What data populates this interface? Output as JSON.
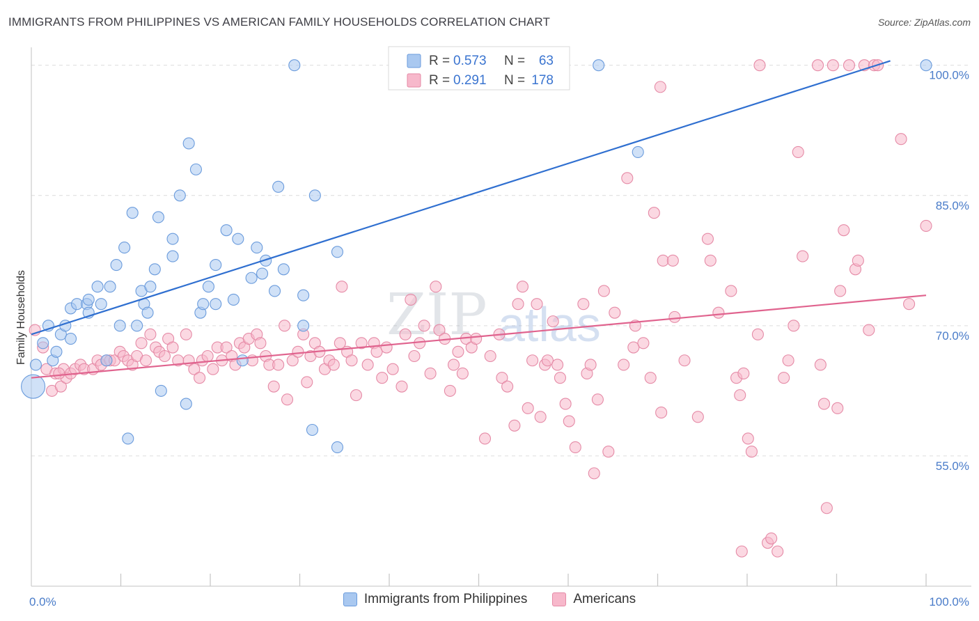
{
  "header": {
    "title": "IMMIGRANTS FROM PHILIPPINES VS AMERICAN FAMILY HOUSEHOLDS CORRELATION CHART",
    "source": "Source: ZipAtlas.com"
  },
  "watermark": {
    "zip": "ZIP",
    "atlas": "atlas"
  },
  "chart_data": {
    "type": "scatter",
    "title": "IMMIGRANTS FROM PHILIPPINES VS AMERICAN FAMILY HOUSEHOLDS CORRELATION CHART",
    "xlabel": "",
    "ylabel": "Family Households",
    "xlim": [
      0,
      100
    ],
    "ylim": [
      40,
      101.5
    ],
    "x_tick_labels": [
      "0.0%",
      "100.0%"
    ],
    "y_ticks": [
      55,
      70,
      85,
      100
    ],
    "y_tick_labels": [
      "55.0%",
      "70.0%",
      "85.0%",
      "100.0%"
    ],
    "grid": true,
    "legend_position": "top-center",
    "stats": [
      {
        "series": "Immigrants from Philippines",
        "r_label": "R =",
        "r": "0.573",
        "n_label": "N =",
        "n": "63"
      },
      {
        "series": "Americans",
        "r_label": "R =",
        "r": "0.291",
        "n_label": "N =",
        "n": "178"
      }
    ],
    "series": [
      {
        "name": "Immigrants from Philippines",
        "color": "#a9c8f0",
        "stroke": "#6a9bdc",
        "trend_color": "#2f6fd0",
        "trend": [
          [
            0,
            69.0
          ],
          [
            96,
            100.5
          ]
        ],
        "points": [
          [
            0.5,
            65.5
          ],
          [
            1.3,
            68
          ],
          [
            1.9,
            70
          ],
          [
            2.4,
            66
          ],
          [
            2.8,
            67
          ],
          [
            3.3,
            69
          ],
          [
            3.8,
            70
          ],
          [
            4.4,
            68.5
          ],
          [
            4.4,
            72
          ],
          [
            5.1,
            72.5
          ],
          [
            6.2,
            72.5
          ],
          [
            6.4,
            71.5
          ],
          [
            6.4,
            73
          ],
          [
            7.4,
            74.5
          ],
          [
            7.8,
            72.5
          ],
          [
            8.4,
            66
          ],
          [
            8.8,
            74.5
          ],
          [
            9.5,
            77
          ],
          [
            9.9,
            70
          ],
          [
            10.4,
            79
          ],
          [
            10.8,
            57
          ],
          [
            11.3,
            83
          ],
          [
            11.8,
            70
          ],
          [
            12.3,
            74
          ],
          [
            12.6,
            72.5
          ],
          [
            13.0,
            71.5
          ],
          [
            13.3,
            74.5
          ],
          [
            13.8,
            76.5
          ],
          [
            14.2,
            82.5
          ],
          [
            14.5,
            62.5
          ],
          [
            15.8,
            78
          ],
          [
            15.8,
            80
          ],
          [
            16.6,
            85
          ],
          [
            17.3,
            61
          ],
          [
            17.6,
            91
          ],
          [
            18.4,
            88
          ],
          [
            18.9,
            71.5
          ],
          [
            19.2,
            72.5
          ],
          [
            19.8,
            74.5
          ],
          [
            20.6,
            72.5
          ],
          [
            20.6,
            77
          ],
          [
            21.8,
            81
          ],
          [
            22.6,
            73
          ],
          [
            23.1,
            80
          ],
          [
            23.6,
            66
          ],
          [
            24.6,
            75.5
          ],
          [
            25.2,
            79
          ],
          [
            25.8,
            76
          ],
          [
            26.2,
            77.5
          ],
          [
            27.2,
            74
          ],
          [
            27.6,
            86
          ],
          [
            28.2,
            76.5
          ],
          [
            29.4,
            100
          ],
          [
            30.4,
            73.5
          ],
          [
            30.4,
            70
          ],
          [
            31.4,
            58
          ],
          [
            31.7,
            85
          ],
          [
            34.2,
            56
          ],
          [
            34.2,
            78.5
          ],
          [
            63.4,
            100
          ],
          [
            67.8,
            90
          ],
          [
            100,
            100
          ],
          [
            0.2,
            63
          ]
        ]
      },
      {
        "name": "Americans",
        "color": "#f7b8cb",
        "stroke": "#e58aa6",
        "trend_color": "#e0638e",
        "trend": [
          [
            0,
            64.0
          ],
          [
            100,
            73.5
          ]
        ],
        "points": [
          [
            0.4,
            69.5
          ],
          [
            1.3,
            67.5
          ],
          [
            1.7,
            65
          ],
          [
            2.3,
            62.5
          ],
          [
            2.7,
            64.5
          ],
          [
            3.3,
            63
          ],
          [
            3.6,
            65
          ],
          [
            3.9,
            64
          ],
          [
            4.4,
            64.5
          ],
          [
            4.9,
            65
          ],
          [
            5.5,
            65.5
          ],
          [
            5.9,
            65
          ],
          [
            6.9,
            65
          ],
          [
            7.4,
            66
          ],
          [
            7.8,
            65.5
          ],
          [
            8.4,
            66
          ],
          [
            8.8,
            66
          ],
          [
            9.3,
            66
          ],
          [
            9.9,
            67
          ],
          [
            10.3,
            66.5
          ],
          [
            10.8,
            66
          ],
          [
            11.3,
            65.5
          ],
          [
            11.8,
            66.5
          ],
          [
            12.3,
            68
          ],
          [
            12.8,
            66
          ],
          [
            13.3,
            69
          ],
          [
            13.9,
            67.5
          ],
          [
            14.3,
            67
          ],
          [
            14.9,
            66.5
          ],
          [
            15.3,
            68.5
          ],
          [
            15.8,
            67.5
          ],
          [
            16.4,
            66
          ],
          [
            17.3,
            69
          ],
          [
            17.6,
            66
          ],
          [
            18.2,
            65
          ],
          [
            18.8,
            64
          ],
          [
            19.1,
            66
          ],
          [
            19.7,
            66.5
          ],
          [
            20.3,
            65
          ],
          [
            20.8,
            67.5
          ],
          [
            21.3,
            66
          ],
          [
            21.8,
            67.5
          ],
          [
            22.4,
            66.5
          ],
          [
            22.8,
            65.5
          ],
          [
            23.3,
            68
          ],
          [
            23.8,
            67.5
          ],
          [
            24.3,
            68.5
          ],
          [
            24.7,
            66
          ],
          [
            25.2,
            69
          ],
          [
            25.6,
            68
          ],
          [
            26.2,
            66.5
          ],
          [
            26.6,
            65.5
          ],
          [
            27.1,
            63
          ],
          [
            27.6,
            65.5
          ],
          [
            28.3,
            70
          ],
          [
            28.6,
            61.5
          ],
          [
            29.2,
            66
          ],
          [
            29.8,
            67
          ],
          [
            30.4,
            69
          ],
          [
            30.8,
            63.5
          ],
          [
            31.2,
            66.5
          ],
          [
            31.7,
            68
          ],
          [
            32.2,
            67
          ],
          [
            32.8,
            65
          ],
          [
            33.3,
            66
          ],
          [
            33.8,
            65.5
          ],
          [
            34.5,
            68
          ],
          [
            34.7,
            74.5
          ],
          [
            35.3,
            67
          ],
          [
            35.8,
            66
          ],
          [
            36.3,
            62
          ],
          [
            36.9,
            68
          ],
          [
            37.6,
            65.5
          ],
          [
            38.3,
            68
          ],
          [
            38.6,
            67
          ],
          [
            39.2,
            64
          ],
          [
            39.7,
            67.5
          ],
          [
            40.4,
            65
          ],
          [
            41.4,
            63
          ],
          [
            41.8,
            69
          ],
          [
            42.4,
            73
          ],
          [
            42.8,
            66.5
          ],
          [
            43.4,
            68
          ],
          [
            43.9,
            70
          ],
          [
            44.6,
            64.5
          ],
          [
            45.2,
            74.5
          ],
          [
            45.6,
            69.5
          ],
          [
            46.2,
            68.5
          ],
          [
            47.2,
            65.5
          ],
          [
            47.7,
            67
          ],
          [
            48.2,
            64.5
          ],
          [
            48.6,
            68.5
          ],
          [
            49.2,
            67.5
          ],
          [
            49.7,
            68.5
          ],
          [
            50.7,
            57
          ],
          [
            51.3,
            66.5
          ],
          [
            52.3,
            69
          ],
          [
            52.6,
            64
          ],
          [
            53.2,
            63
          ],
          [
            54.0,
            58.5
          ],
          [
            54.4,
            72.5
          ],
          [
            54.9,
            74.5
          ],
          [
            55.5,
            60.5
          ],
          [
            56.0,
            66
          ],
          [
            56.5,
            72.5
          ],
          [
            56.9,
            59.5
          ],
          [
            57.4,
            65.5
          ],
          [
            57.7,
            66
          ],
          [
            58.3,
            70.5
          ],
          [
            58.8,
            65.5
          ],
          [
            59.1,
            64
          ],
          [
            59.7,
            61
          ],
          [
            60.1,
            59
          ],
          [
            60.8,
            56
          ],
          [
            61.7,
            72.5
          ],
          [
            62.1,
            64.5
          ],
          [
            62.5,
            65.5
          ],
          [
            62.9,
            53
          ],
          [
            63.3,
            61.5
          ],
          [
            64.0,
            74
          ],
          [
            64.5,
            55.5
          ],
          [
            65.2,
            71.5
          ],
          [
            66.2,
            65.5
          ],
          [
            66.6,
            87
          ],
          [
            67.3,
            67.5
          ],
          [
            67.5,
            70
          ],
          [
            68.4,
            68
          ],
          [
            69.2,
            64
          ],
          [
            69.6,
            83
          ],
          [
            70.4,
            60
          ],
          [
            70.6,
            77.5
          ],
          [
            71.7,
            77.5
          ],
          [
            71.9,
            71
          ],
          [
            73.0,
            66
          ],
          [
            74.5,
            59.5
          ],
          [
            75.6,
            80
          ],
          [
            75.9,
            77.5
          ],
          [
            76.8,
            71.5
          ],
          [
            78.2,
            74
          ],
          [
            78.8,
            64
          ],
          [
            79.2,
            62
          ],
          [
            79.4,
            44
          ],
          [
            79.6,
            64.5
          ],
          [
            80.1,
            57
          ],
          [
            80.5,
            55.5
          ],
          [
            81.2,
            69
          ],
          [
            81.4,
            100
          ],
          [
            82.3,
            45
          ],
          [
            82.7,
            45.5
          ],
          [
            83.4,
            44
          ],
          [
            84.1,
            64
          ],
          [
            84.6,
            66
          ],
          [
            85.2,
            70
          ],
          [
            85.7,
            90
          ],
          [
            86.2,
            78
          ],
          [
            87.9,
            100
          ],
          [
            88.2,
            65.5
          ],
          [
            88.6,
            61
          ],
          [
            88.9,
            49
          ],
          [
            89.6,
            100
          ],
          [
            90.1,
            60.5
          ],
          [
            90.4,
            74
          ],
          [
            90.8,
            81
          ],
          [
            91.4,
            100
          ],
          [
            92.1,
            76.5
          ],
          [
            92.4,
            77.5
          ],
          [
            93.1,
            100
          ],
          [
            93.6,
            69.5
          ],
          [
            94.2,
            100
          ],
          [
            94.6,
            100
          ],
          [
            97.2,
            91.5
          ],
          [
            98.1,
            72.5
          ],
          [
            100,
            81.5
          ],
          [
            70.3,
            97.5
          ],
          [
            3.1,
            64.5
          ],
          [
            46.8,
            62.5
          ]
        ]
      }
    ]
  },
  "bottom_legend": [
    {
      "label": "Immigrants from Philippines",
      "color": "#a9c8f0",
      "stroke": "#6a9bdc"
    },
    {
      "label": "Americans",
      "color": "#f7b8cb",
      "stroke": "#e58aa6"
    }
  ]
}
